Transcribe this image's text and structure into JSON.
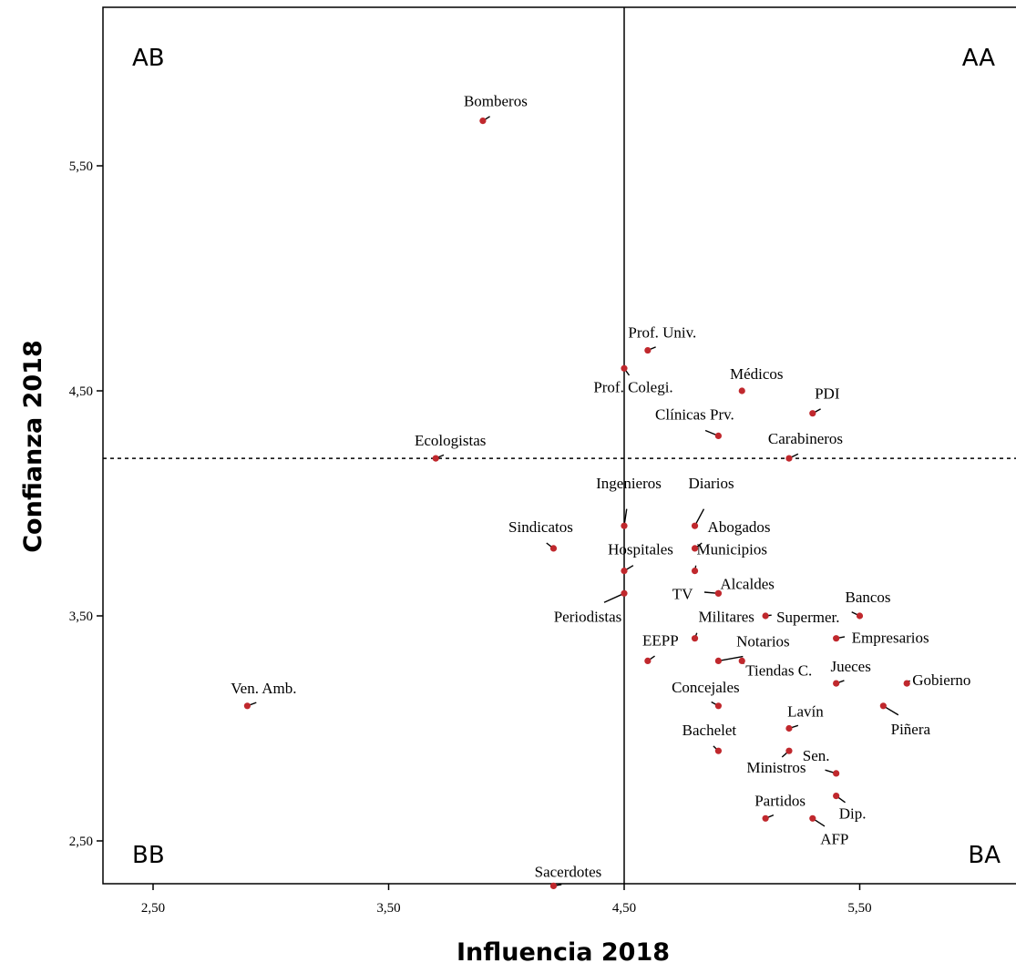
{
  "chart_data": {
    "type": "scatter",
    "xlabel": "Influencia 2018",
    "ylabel": "Confianza 2018",
    "xlim": [
      2.3,
      6.2
    ],
    "ylim": [
      2.3,
      6.0
    ],
    "x_ticks": [
      2.5,
      3.5,
      4.5,
      5.5
    ],
    "x_tick_labels": [
      "2,50",
      "3,50",
      "4,50",
      "5,50"
    ],
    "y_ticks": [
      2.5,
      3.5,
      4.5,
      5.5
    ],
    "y_tick_labels": [
      "2,50",
      "3,50",
      "4,50",
      "5,50"
    ],
    "reference_lines": {
      "vertical_x": 4.5,
      "horizontal_y_dashed": 4.2
    },
    "quadrants": {
      "top_left": "AB",
      "top_right": "AA",
      "bottom_left": "BB",
      "bottom_right": "BA"
    },
    "point_color": "#c0282d",
    "points": [
      {
        "label": "Bomberos",
        "x": 3.9,
        "y": 5.7
      },
      {
        "label": "Prof. Univ.",
        "x": 4.6,
        "y": 4.68
      },
      {
        "label": "Prof. Colegi.",
        "x": 4.5,
        "y": 4.6
      },
      {
        "label": "Médicos",
        "x": 5.0,
        "y": 4.5
      },
      {
        "label": "PDI",
        "x": 5.3,
        "y": 4.4
      },
      {
        "label": "Clínicas Prv.",
        "x": 4.9,
        "y": 4.3
      },
      {
        "label": "Carabineros",
        "x": 5.2,
        "y": 4.2
      },
      {
        "label": "Ecologistas",
        "x": 3.7,
        "y": 4.2
      },
      {
        "label": "Ingenieros",
        "x": 4.5,
        "y": 3.9
      },
      {
        "label": "Diarios",
        "x": 4.8,
        "y": 3.9
      },
      {
        "label": "Abogados",
        "x": 4.8,
        "y": 3.8
      },
      {
        "label": "Sindicatos",
        "x": 4.2,
        "y": 3.8
      },
      {
        "label": "Hospitales",
        "x": 4.5,
        "y": 3.7
      },
      {
        "label": "Municipios",
        "x": 4.8,
        "y": 3.7
      },
      {
        "label": "TV",
        "x": 4.9,
        "y": 3.6
      },
      {
        "label": "Alcaldes",
        "x": 4.9,
        "y": 3.6
      },
      {
        "label": "Periodistas",
        "x": 4.5,
        "y": 3.6
      },
      {
        "label": "Supermer.",
        "x": 5.1,
        "y": 3.5
      },
      {
        "label": "Bancos",
        "x": 5.5,
        "y": 3.5
      },
      {
        "label": "Militares",
        "x": 4.8,
        "y": 3.4
      },
      {
        "label": "Empresarios",
        "x": 5.4,
        "y": 3.4
      },
      {
        "label": "EEPP",
        "x": 4.6,
        "y": 3.3
      },
      {
        "label": "Notarios",
        "x": 4.9,
        "y": 3.3
      },
      {
        "label": "Tiendas C.",
        "x": 5.0,
        "y": 3.3
      },
      {
        "label": "Jueces",
        "x": 5.4,
        "y": 3.2
      },
      {
        "label": "Gobierno",
        "x": 5.7,
        "y": 3.2
      },
      {
        "label": "Ven. Amb.",
        "x": 2.9,
        "y": 3.1
      },
      {
        "label": "Concejales",
        "x": 4.9,
        "y": 3.1
      },
      {
        "label": "Piñera",
        "x": 5.6,
        "y": 3.1
      },
      {
        "label": "Lavín",
        "x": 5.2,
        "y": 3.0
      },
      {
        "label": "Bachelet",
        "x": 4.9,
        "y": 2.9
      },
      {
        "label": "Ministros",
        "x": 5.2,
        "y": 2.9
      },
      {
        "label": "Sen.",
        "x": 5.4,
        "y": 2.8
      },
      {
        "label": "Dip.",
        "x": 5.4,
        "y": 2.7
      },
      {
        "label": "Partidos",
        "x": 5.1,
        "y": 2.6
      },
      {
        "label": "AFP",
        "x": 5.3,
        "y": 2.6
      },
      {
        "label": "Sacerdotes",
        "x": 4.2,
        "y": 2.3
      }
    ]
  }
}
